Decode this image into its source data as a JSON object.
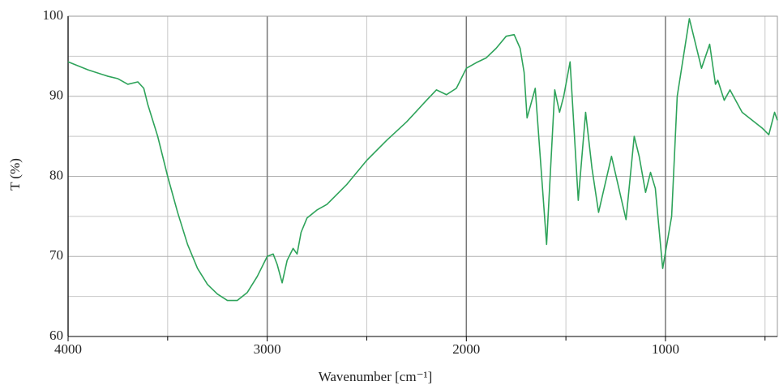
{
  "chart_data": {
    "type": "line",
    "xlabel": "Wavenumber [cm⁻¹]",
    "ylabel": "T (%)",
    "xlim": [
      4000,
      438
    ],
    "ylim": [
      60,
      100
    ],
    "xticks": [
      4000,
      3000,
      2000,
      1000
    ],
    "yticks": [
      60,
      70,
      80,
      90,
      100
    ],
    "minor_xticks": [
      3500,
      2500,
      1500,
      500
    ],
    "minor_yticks": [
      65,
      75,
      85,
      95
    ],
    "grid": true,
    "series": [
      {
        "name": "T",
        "color": "#2ea35a",
        "x": [
          4000,
          3900,
          3800,
          3750,
          3700,
          3650,
          3620,
          3600,
          3550,
          3500,
          3450,
          3400,
          3350,
          3300,
          3250,
          3200,
          3150,
          3100,
          3050,
          3000,
          2970,
          2950,
          2925,
          2900,
          2870,
          2850,
          2830,
          2800,
          2750,
          2700,
          2600,
          2500,
          2400,
          2300,
          2200,
          2150,
          2100,
          2050,
          2000,
          1950,
          1900,
          1850,
          1800,
          1760,
          1730,
          1710,
          1695,
          1654,
          1597,
          1556,
          1532,
          1511,
          1479,
          1438,
          1401,
          1369,
          1336,
          1271,
          1198,
          1157,
          1132,
          1100,
          1075,
          1051,
          1014,
          969,
          941,
          880,
          819,
          778,
          749,
          737,
          705,
          676,
          615,
          513,
          481,
          452,
          438
        ],
        "values": [
          94.3,
          93.3,
          92.5,
          92.2,
          91.5,
          91.8,
          91.0,
          89,
          85,
          80,
          75.5,
          71.5,
          68.5,
          66.5,
          65.3,
          64.5,
          64.5,
          65.5,
          67.5,
          70,
          70.3,
          69,
          66.7,
          69.5,
          71,
          70.3,
          73,
          74.8,
          75.8,
          76.5,
          79,
          82,
          84.5,
          86.8,
          89.5,
          90.8,
          90.2,
          91,
          93.5,
          94.2,
          94.8,
          96,
          97.5,
          97.7,
          96,
          93,
          87.3,
          91,
          71.5,
          90.8,
          88,
          90,
          94.3,
          77,
          88,
          81,
          75.5,
          82.5,
          74.6,
          85,
          82.5,
          78,
          80.5,
          78.5,
          68.5,
          75,
          90,
          99.7,
          93.5,
          96.5,
          91.5,
          92,
          89.5,
          90.8,
          88,
          86,
          85.2,
          88,
          87
        ]
      }
    ]
  }
}
